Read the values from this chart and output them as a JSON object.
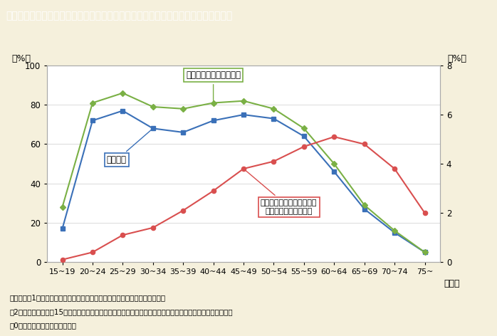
{
  "title": "第１－２－７図　女性の労働力率及び女性の各年齢階級人口に対する自営業主の比率",
  "categories": [
    "15~19",
    "20~24",
    "25~29",
    "30~34",
    "35~39",
    "40~44",
    "45~49",
    "50~54",
    "55~59",
    "60~64",
    "65~69",
    "70~74",
    "75~"
  ],
  "xlabel": "（歳）",
  "ylabel_left": "（%）",
  "ylabel_right": "（%）",
  "ylim_left": [
    0,
    100
  ],
  "ylim_right": [
    0,
    8
  ],
  "yticks_left": [
    0,
    20,
    40,
    60,
    80,
    100
  ],
  "yticks_right": [
    0,
    2,
    4,
    6,
    8
  ],
  "labor_force_rate": [
    17,
    72,
    77,
    68,
    66,
    72,
    75,
    73,
    64,
    46,
    27,
    15,
    5
  ],
  "labor_plus_desire": [
    28,
    81,
    86,
    79,
    78,
    81,
    82,
    78,
    68,
    50,
    29,
    16,
    5
  ],
  "jiei_ratio": [
    0.1,
    0.4,
    1.1,
    1.4,
    2.1,
    2.9,
    3.8,
    4.1,
    4.7,
    5.1,
    4.8,
    3.8,
    2.0
  ],
  "line_labor_color": "#3a70b8",
  "line_labor_plus_color": "#7ab045",
  "line_jiei_color": "#d94f4f",
  "marker_labor": "s",
  "marker_labor_plus": "D",
  "marker_jiei": "o",
  "background_color": "#f5f0dc",
  "plot_bg_color": "#ffffff",
  "title_bg_color": "#8b7355",
  "title_text_color": "#ffffff",
  "note_line1": "（備考）　1．総務省「労働力調査（詳細集計）」（平成２２年）より作成。",
  "note_line2": "　2．年齢階級ごとの15歳以上人口に占める労働力人口及び自営業主の割合を示している。自営業主には家族",
  "note_line3": "　0従業者，内職者は含まない。",
  "label_rodo": "労働力率",
  "label_rodo_plus": "労働力率＋就業希望者率",
  "label_jiei_line1": "自営業主の年齢階級人口に",
  "label_jiei_line2": "対する比率（右目盛）"
}
